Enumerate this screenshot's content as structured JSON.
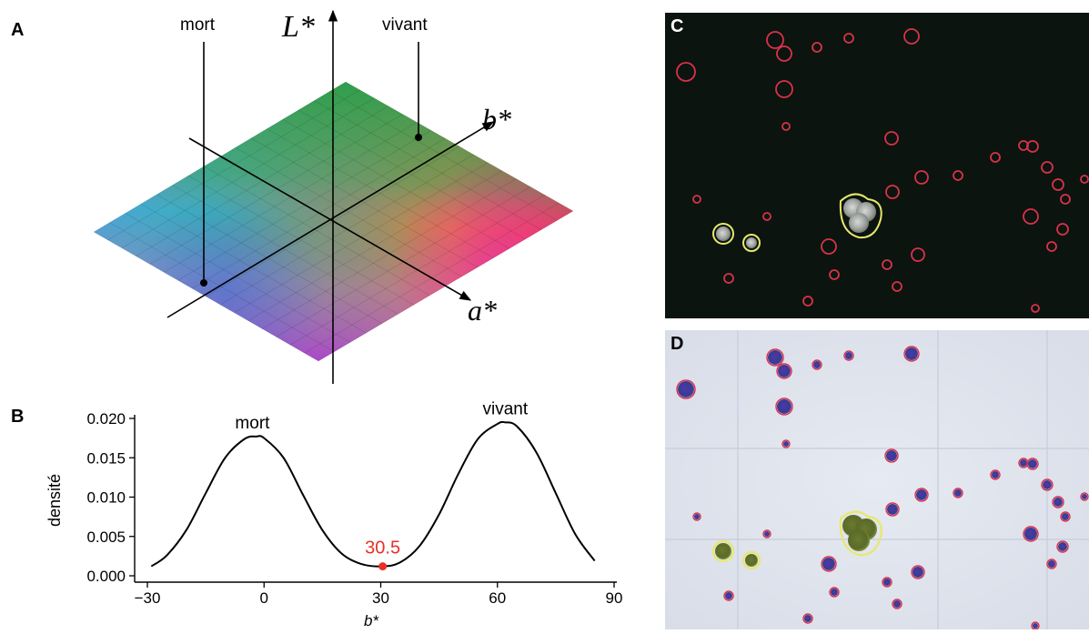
{
  "panels": {
    "a": "A",
    "b": "B",
    "c": "C",
    "d": "D"
  },
  "panel_a": {
    "axis_l": "L*",
    "axis_a": "a*",
    "axis_b": "b*",
    "label_dead": "mort",
    "label_alive": "vivant"
  },
  "colors": {
    "dead_marker": "#000000",
    "threshold": "#e8302a",
    "dead_outline": "#d8324a",
    "alive_outline": "#e8e86a"
  },
  "chart_data": {
    "type": "line",
    "xlabel": "b*",
    "ylabel": "densité",
    "xlim": [
      -30,
      90
    ],
    "ylim": [
      0,
      0.02
    ],
    "xticks": [
      "−30",
      "0",
      "30",
      "60",
      "90"
    ],
    "yticks": [
      "0.000",
      "0.005",
      "0.010",
      "0.015",
      "0.020"
    ],
    "series": [
      {
        "x": [
          -29,
          -25,
          -20,
          -15,
          -10,
          -5,
          -2,
          0,
          5,
          10,
          15,
          20,
          25,
          30.5,
          35,
          40,
          45,
          50,
          55,
          60,
          62,
          65,
          70,
          75,
          80,
          85
        ],
        "y": [
          0.0012,
          0.0026,
          0.0058,
          0.0105,
          0.015,
          0.0174,
          0.0177,
          0.0175,
          0.015,
          0.0103,
          0.0058,
          0.0028,
          0.0015,
          0.0012,
          0.0017,
          0.0038,
          0.0078,
          0.013,
          0.0174,
          0.0193,
          0.0195,
          0.019,
          0.0157,
          0.0105,
          0.0053,
          0.0019
        ]
      }
    ],
    "annotations": [
      {
        "text": "mort",
        "x": -3,
        "y": 0.0177
      },
      {
        "text": "vivant",
        "x": 62,
        "y": 0.0195
      }
    ],
    "threshold": {
      "label": "30.5",
      "x": 30.5,
      "y": 0.0012
    }
  },
  "panel_c": {
    "dead_cells": [
      [
        121,
        30,
        9
      ],
      [
        131,
        45,
        8
      ],
      [
        167,
        38,
        5
      ],
      [
        202,
        28,
        5
      ],
      [
        271,
        26,
        8
      ],
      [
        23,
        65,
        10
      ],
      [
        131,
        84,
        9
      ],
      [
        133,
        125,
        4
      ],
      [
        249,
        138,
        7
      ],
      [
        35,
        205,
        4
      ],
      [
        112,
        224,
        4
      ],
      [
        180,
        257,
        8
      ],
      [
        250,
        197,
        7
      ],
      [
        282,
        181,
        7
      ],
      [
        322,
        179,
        5
      ],
      [
        363,
        159,
        5
      ],
      [
        394,
        146,
        5
      ],
      [
        404,
        147,
        6
      ],
      [
        420,
        170,
        6
      ],
      [
        432,
        189,
        6
      ],
      [
        440,
        205,
        5
      ],
      [
        402,
        224,
        8
      ],
      [
        437,
        238,
        6
      ],
      [
        425,
        257,
        5
      ],
      [
        70,
        292,
        5
      ],
      [
        186,
        288,
        5
      ],
      [
        244,
        277,
        5
      ],
      [
        278,
        266,
        7
      ],
      [
        255,
        301,
        5
      ],
      [
        157,
        317,
        5
      ],
      [
        407,
        325,
        4
      ],
      [
        461,
        183,
        4
      ]
    ],
    "alive_cells": [
      [
        64,
        243,
        11
      ],
      [
        95,
        253,
        9
      ],
      [
        213,
        221,
        24
      ]
    ]
  },
  "panel_d": {
    "dead_cells": [
      [
        121,
        30,
        9
      ],
      [
        131,
        45,
        8
      ],
      [
        167,
        38,
        5
      ],
      [
        202,
        28,
        5
      ],
      [
        271,
        26,
        8
      ],
      [
        23,
        65,
        10
      ],
      [
        131,
        84,
        9
      ],
      [
        133,
        125,
        4
      ],
      [
        249,
        138,
        7
      ],
      [
        35,
        205,
        4
      ],
      [
        112,
        224,
        4
      ],
      [
        180,
        257,
        8
      ],
      [
        250,
        197,
        7
      ],
      [
        282,
        181,
        7
      ],
      [
        322,
        179,
        5
      ],
      [
        363,
        159,
        5
      ],
      [
        394,
        146,
        5
      ],
      [
        404,
        147,
        6
      ],
      [
        420,
        170,
        6
      ],
      [
        432,
        189,
        6
      ],
      [
        440,
        205,
        5
      ],
      [
        402,
        224,
        8
      ],
      [
        437,
        238,
        6
      ],
      [
        425,
        257,
        5
      ],
      [
        70,
        292,
        5
      ],
      [
        186,
        288,
        5
      ],
      [
        244,
        277,
        5
      ],
      [
        278,
        266,
        7
      ],
      [
        255,
        301,
        5
      ],
      [
        157,
        317,
        5
      ],
      [
        407,
        325,
        4
      ],
      [
        461,
        183,
        4
      ]
    ],
    "alive_cells": [
      [
        64,
        243,
        11
      ],
      [
        95,
        253,
        9
      ],
      [
        213,
        221,
        24
      ]
    ]
  }
}
